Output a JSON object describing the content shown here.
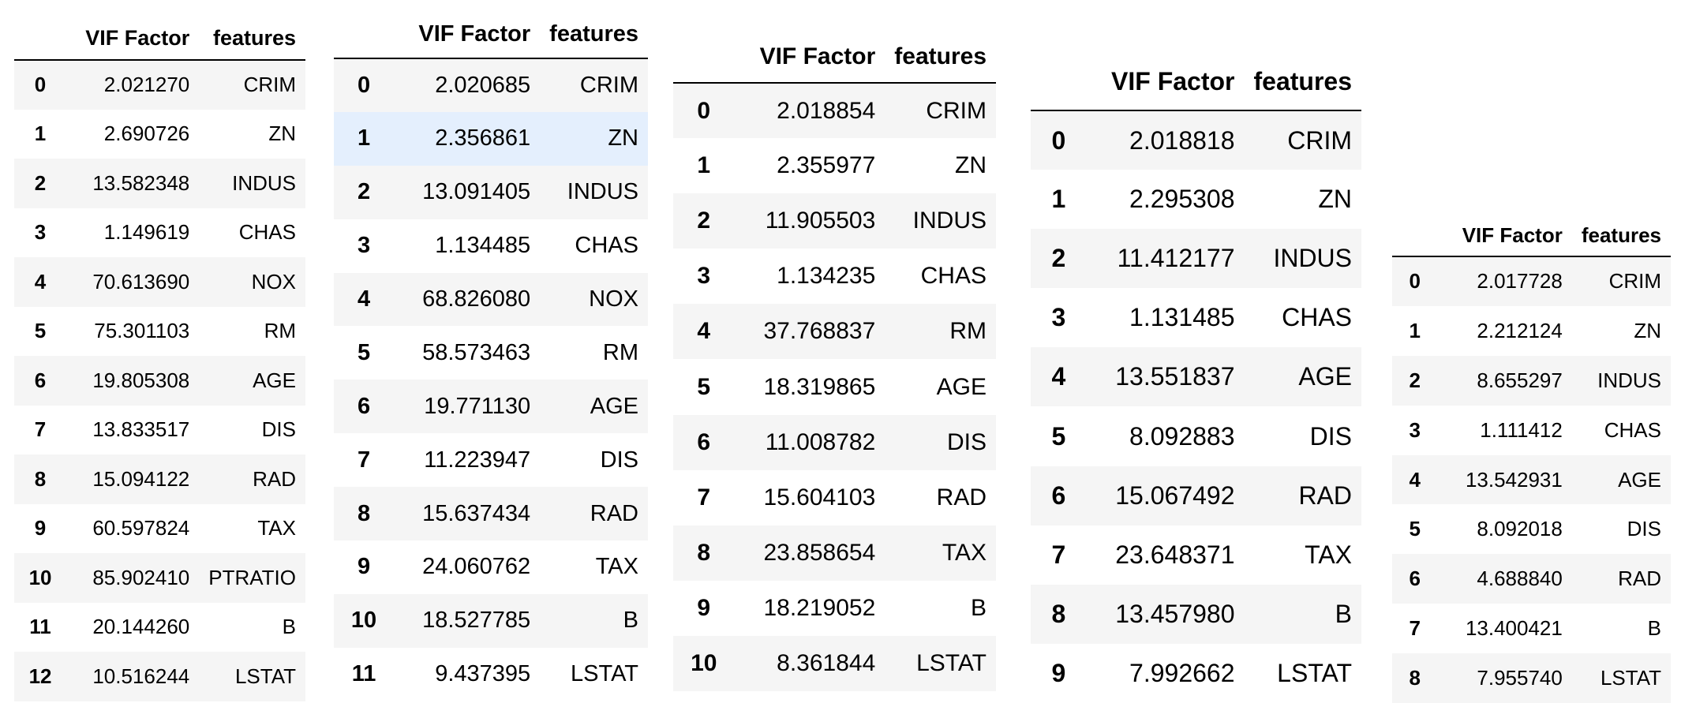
{
  "tables": [
    {
      "columns": [
        "VIF Factor",
        "features"
      ],
      "rows": [
        {
          "index": "0",
          "vif": "2.021270",
          "feature": "CRIM"
        },
        {
          "index": "1",
          "vif": "2.690726",
          "feature": "ZN"
        },
        {
          "index": "2",
          "vif": "13.582348",
          "feature": "INDUS"
        },
        {
          "index": "3",
          "vif": "1.149619",
          "feature": "CHAS"
        },
        {
          "index": "4",
          "vif": "70.613690",
          "feature": "NOX"
        },
        {
          "index": "5",
          "vif": "75.301103",
          "feature": "RM"
        },
        {
          "index": "6",
          "vif": "19.805308",
          "feature": "AGE"
        },
        {
          "index": "7",
          "vif": "13.833517",
          "feature": "DIS"
        },
        {
          "index": "8",
          "vif": "15.094122",
          "feature": "RAD"
        },
        {
          "index": "9",
          "vif": "60.597824",
          "feature": "TAX"
        },
        {
          "index": "10",
          "vif": "85.902410",
          "feature": "PTRATIO"
        },
        {
          "index": "11",
          "vif": "20.144260",
          "feature": "B"
        },
        {
          "index": "12",
          "vif": "10.516244",
          "feature": "LSTAT"
        }
      ]
    },
    {
      "columns": [
        "VIF Factor",
        "features"
      ],
      "highlighted_row": 1,
      "rows": [
        {
          "index": "0",
          "vif": "2.020685",
          "feature": "CRIM"
        },
        {
          "index": "1",
          "vif": "2.356861",
          "feature": "ZN"
        },
        {
          "index": "2",
          "vif": "13.091405",
          "feature": "INDUS"
        },
        {
          "index": "3",
          "vif": "1.134485",
          "feature": "CHAS"
        },
        {
          "index": "4",
          "vif": "68.826080",
          "feature": "NOX"
        },
        {
          "index": "5",
          "vif": "58.573463",
          "feature": "RM"
        },
        {
          "index": "6",
          "vif": "19.771130",
          "feature": "AGE"
        },
        {
          "index": "7",
          "vif": "11.223947",
          "feature": "DIS"
        },
        {
          "index": "8",
          "vif": "15.637434",
          "feature": "RAD"
        },
        {
          "index": "9",
          "vif": "24.060762",
          "feature": "TAX"
        },
        {
          "index": "10",
          "vif": "18.527785",
          "feature": "B"
        },
        {
          "index": "11",
          "vif": "9.437395",
          "feature": "LSTAT"
        }
      ]
    },
    {
      "columns": [
        "VIF Factor",
        "features"
      ],
      "rows": [
        {
          "index": "0",
          "vif": "2.018854",
          "feature": "CRIM"
        },
        {
          "index": "1",
          "vif": "2.355977",
          "feature": "ZN"
        },
        {
          "index": "2",
          "vif": "11.905503",
          "feature": "INDUS"
        },
        {
          "index": "3",
          "vif": "1.134235",
          "feature": "CHAS"
        },
        {
          "index": "4",
          "vif": "37.768837",
          "feature": "RM"
        },
        {
          "index": "5",
          "vif": "18.319865",
          "feature": "AGE"
        },
        {
          "index": "6",
          "vif": "11.008782",
          "feature": "DIS"
        },
        {
          "index": "7",
          "vif": "15.604103",
          "feature": "RAD"
        },
        {
          "index": "8",
          "vif": "23.858654",
          "feature": "TAX"
        },
        {
          "index": "9",
          "vif": "18.219052",
          "feature": "B"
        },
        {
          "index": "10",
          "vif": "8.361844",
          "feature": "LSTAT"
        }
      ]
    },
    {
      "columns": [
        "VIF Factor",
        "features"
      ],
      "rows": [
        {
          "index": "0",
          "vif": "2.018818",
          "feature": "CRIM"
        },
        {
          "index": "1",
          "vif": "2.295308",
          "feature": "ZN"
        },
        {
          "index": "2",
          "vif": "11.412177",
          "feature": "INDUS"
        },
        {
          "index": "3",
          "vif": "1.131485",
          "feature": "CHAS"
        },
        {
          "index": "4",
          "vif": "13.551837",
          "feature": "AGE"
        },
        {
          "index": "5",
          "vif": "8.092883",
          "feature": "DIS"
        },
        {
          "index": "6",
          "vif": "15.067492",
          "feature": "RAD"
        },
        {
          "index": "7",
          "vif": "23.648371",
          "feature": "TAX"
        },
        {
          "index": "8",
          "vif": "13.457980",
          "feature": "B"
        },
        {
          "index": "9",
          "vif": "7.992662",
          "feature": "LSTAT"
        }
      ]
    },
    {
      "columns": [
        "VIF Factor",
        "features"
      ],
      "rows": [
        {
          "index": "0",
          "vif": "2.017728",
          "feature": "CRIM"
        },
        {
          "index": "1",
          "vif": "2.212124",
          "feature": "ZN"
        },
        {
          "index": "2",
          "vif": "8.655297",
          "feature": "INDUS"
        },
        {
          "index": "3",
          "vif": "1.111412",
          "feature": "CHAS"
        },
        {
          "index": "4",
          "vif": "13.542931",
          "feature": "AGE"
        },
        {
          "index": "5",
          "vif": "8.092018",
          "feature": "DIS"
        },
        {
          "index": "6",
          "vif": "4.688840",
          "feature": "RAD"
        },
        {
          "index": "7",
          "vif": "13.400421",
          "feature": "B"
        },
        {
          "index": "8",
          "vif": "7.955740",
          "feature": "LSTAT"
        }
      ]
    }
  ]
}
